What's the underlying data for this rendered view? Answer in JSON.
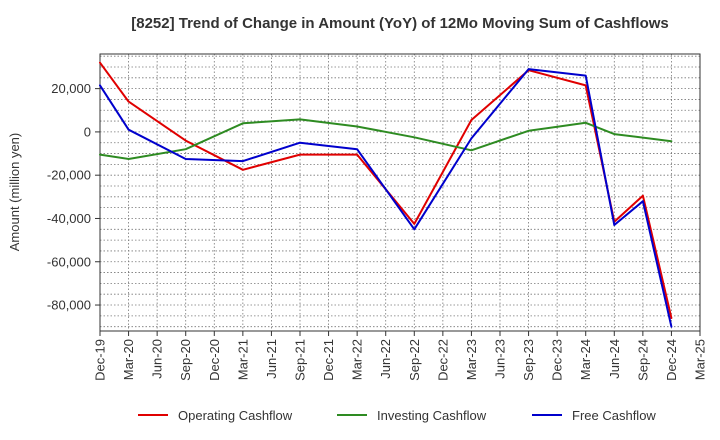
{
  "chart_data": {
    "type": "line",
    "title": "[8252]  Trend of Change in Amount (YoY) of 12Mo Moving Sum of Cashflows",
    "xlabel": "",
    "ylabel": "Amount (million yen)",
    "ylim": [
      -92000,
      36000
    ],
    "yticks": [
      20000,
      0,
      -20000,
      -40000,
      -60000,
      -80000
    ],
    "ytick_labels": [
      "20,000",
      "0",
      "-20,000",
      "-40,000",
      "-60,000",
      "-80,000"
    ],
    "categories": [
      "Dec-19",
      "Mar-20",
      "Jun-20",
      "Sep-20",
      "Dec-20",
      "Mar-21",
      "Jun-21",
      "Sep-21",
      "Dec-21",
      "Mar-22",
      "Jun-22",
      "Sep-22",
      "Dec-22",
      "Mar-23",
      "Jun-23",
      "Sep-23",
      "Dec-23",
      "Mar-24",
      "Jun-24",
      "Sep-24",
      "Dec-24",
      "Mar-25"
    ],
    "grid": true,
    "legend_position": "bottom",
    "series": [
      {
        "name": "Operating Cashflow",
        "color": "#e00000",
        "values": [
          32000,
          14000,
          null,
          -4000,
          null,
          -17500,
          null,
          -10500,
          null,
          -10500,
          null,
          -42500,
          null,
          5500,
          null,
          28500,
          null,
          21500,
          -41500,
          -29500,
          -86000,
          null
        ]
      },
      {
        "name": "Investing Cashflow",
        "color": "#2e8b22",
        "values": [
          -10500,
          -12500,
          null,
          -8000,
          null,
          4000,
          null,
          5800,
          null,
          2500,
          null,
          -2500,
          null,
          -8500,
          null,
          500,
          null,
          4200,
          -1000,
          null,
          -4300,
          null
        ]
      },
      {
        "name": "Free Cashflow",
        "color": "#0000cc",
        "values": [
          21500,
          1000,
          null,
          -12500,
          null,
          -13500,
          null,
          -5000,
          null,
          -8000,
          null,
          -45000,
          null,
          -3000,
          null,
          29000,
          null,
          26000,
          -43000,
          -32000,
          -90000,
          null
        ]
      }
    ]
  }
}
